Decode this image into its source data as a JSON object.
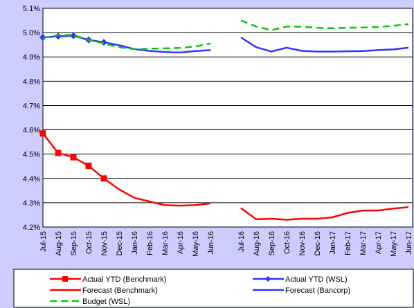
{
  "chart_data": {
    "type": "line",
    "categories": [
      "Jul-15",
      "Aug-15",
      "Sep-15",
      "Oct-15",
      "Nov-15",
      "Dec-15",
      "Jan-16",
      "Feb-16",
      "Mar-16",
      "Apr-16",
      "May-16",
      "Jun-16",
      null,
      "Jul-16",
      "Aug-16",
      "Sep-16",
      "Oct-16",
      "Nov-16",
      "Dec-16",
      "Jan-17",
      "Feb-17",
      "Mar-17",
      "Apr-17",
      "May-17",
      "Jun-17"
    ],
    "ylim": [
      4.2,
      5.1
    ],
    "yticks": [
      {
        "value": 4.2,
        "label": "4.2%"
      },
      {
        "value": 4.3,
        "label": "4.3%"
      },
      {
        "value": 4.4,
        "label": "4.4%"
      },
      {
        "value": 4.5,
        "label": "4.5%"
      },
      {
        "value": 4.6,
        "label": "4.6%"
      },
      {
        "value": 4.7,
        "label": "4.7%"
      },
      {
        "value": 4.8,
        "label": "4.8%"
      },
      {
        "value": 4.9,
        "label": "4.9%"
      },
      {
        "value": 5.0,
        "label": "5.0%"
      },
      {
        "value": 5.1,
        "label": "5.1%"
      }
    ],
    "grid": true,
    "series": [
      {
        "name": "Actual YTD (Benchmark)",
        "color": "#ff0000",
        "marker": "square",
        "values": [
          4.585,
          4.505,
          4.487,
          4.452,
          4.4,
          null,
          null,
          null,
          null,
          null,
          null,
          null,
          null,
          null,
          null,
          null,
          null,
          null,
          null,
          null,
          null,
          null,
          null,
          null,
          null
        ]
      },
      {
        "name": "Actual YTD (WSL)",
        "color": "#3333ff",
        "marker": "diamond",
        "values": [
          4.98,
          4.985,
          4.987,
          4.97,
          4.96,
          null,
          null,
          null,
          null,
          null,
          null,
          null,
          null,
          null,
          null,
          null,
          null,
          null,
          null,
          null,
          null,
          null,
          null,
          null,
          null
        ]
      },
      {
        "name": "Forecast (Benchmark)",
        "color": "#ff0000",
        "values": [
          null,
          null,
          null,
          null,
          4.4,
          4.355,
          4.32,
          4.305,
          4.29,
          4.288,
          4.29,
          4.297,
          null,
          4.278,
          4.232,
          4.234,
          4.23,
          4.234,
          4.234,
          4.24,
          4.258,
          4.268,
          4.268,
          4.276,
          4.282
        ]
      },
      {
        "name": "Forecast (Bancorp)",
        "color": "#3333ff",
        "values": [
          null,
          null,
          null,
          null,
          4.96,
          4.948,
          4.932,
          4.925,
          4.92,
          4.918,
          4.924,
          4.928,
          null,
          4.98,
          4.94,
          4.922,
          4.938,
          4.925,
          4.922,
          4.922,
          4.923,
          4.924,
          4.928,
          4.931,
          4.938
        ]
      },
      {
        "name": "Budget (WSL)",
        "color": "#00cc00",
        "dash": true,
        "values": [
          4.978,
          4.99,
          4.99,
          4.97,
          4.955,
          4.94,
          4.932,
          4.934,
          4.935,
          4.937,
          4.943,
          4.955,
          null,
          5.05,
          5.025,
          5.01,
          5.025,
          5.024,
          5.02,
          5.018,
          5.02,
          5.021,
          5.023,
          5.028,
          5.035
        ]
      }
    ]
  }
}
